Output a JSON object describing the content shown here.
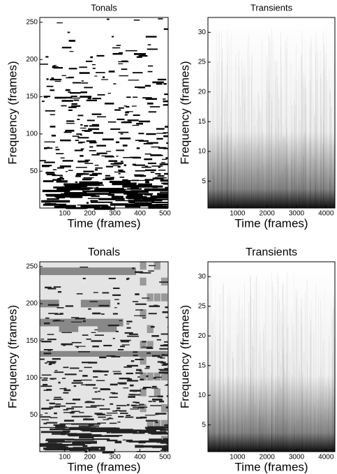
{
  "chart_data": [
    {
      "type": "heatmap",
      "title": "Tonals",
      "xlabel": "Time (frames)",
      "ylabel": "Frequency (frames)",
      "xlim": [
        0.5,
        512.5
      ],
      "ylim": [
        0.5,
        256.5
      ],
      "xticks": [
        100,
        200,
        300,
        400,
        500
      ],
      "yticks": [
        50,
        100,
        150,
        200,
        250
      ]
    },
    {
      "type": "heatmap",
      "title": "Transients",
      "xlabel": "Time (frames)",
      "ylabel": "Frequency (frames)",
      "xlim": [
        0,
        4300
      ],
      "ylim": [
        0.5,
        32.5
      ],
      "xticks": [
        1000,
        2000,
        3000,
        4000
      ],
      "yticks": [
        5,
        10,
        15,
        20,
        25,
        30
      ]
    },
    {
      "type": "heatmap",
      "title": "Tonals",
      "xlabel": "Time (frames)",
      "ylabel": "Frequency (frames)",
      "xlim": [
        0.5,
        512.5
      ],
      "ylim": [
        0.5,
        256.5
      ],
      "xticks": [
        100,
        200,
        300,
        400,
        500
      ],
      "yticks": [
        50,
        100,
        150,
        200,
        250
      ]
    },
    {
      "type": "heatmap",
      "title": "Transients",
      "xlabel": "Time (frames)",
      "ylabel": "Frequency (frames)",
      "xlim": [
        0,
        4300
      ],
      "ylim": [
        0.5,
        32.5
      ],
      "xticks": [
        1000,
        2000,
        3000,
        4000
      ],
      "yticks": [
        5,
        10,
        15,
        20,
        25,
        30
      ]
    }
  ]
}
